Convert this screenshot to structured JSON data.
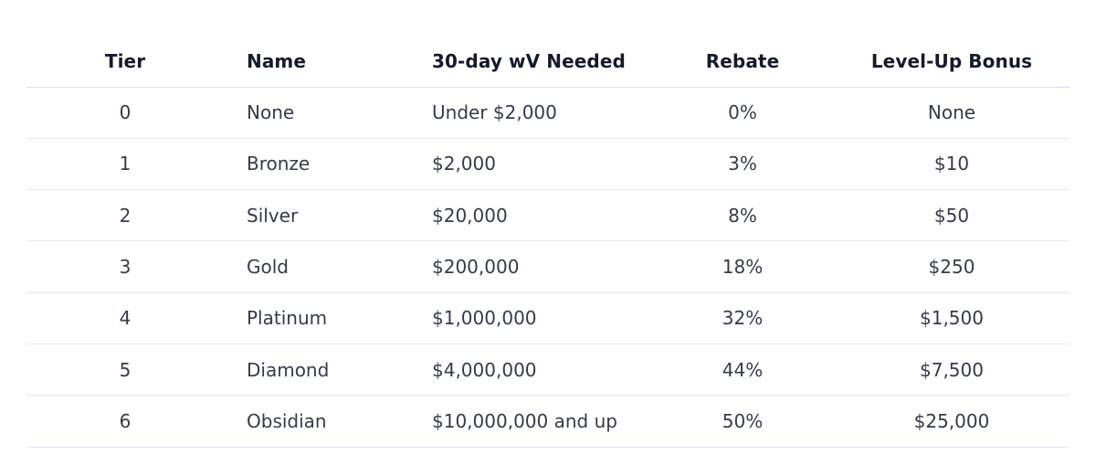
{
  "table": {
    "headers": {
      "tier": "Tier",
      "name": "Name",
      "volume": "30-day wV Needed",
      "rebate": "Rebate",
      "bonus": "Level-Up Bonus"
    },
    "rows": [
      {
        "tier": "0",
        "name": "None",
        "volume": "Under $2,000",
        "rebate": "0%",
        "bonus": "None"
      },
      {
        "tier": "1",
        "name": "Bronze",
        "volume": "$2,000",
        "rebate": "3%",
        "bonus": "$10"
      },
      {
        "tier": "2",
        "name": "Silver",
        "volume": "$20,000",
        "rebate": "8%",
        "bonus": "$50"
      },
      {
        "tier": "3",
        "name": "Gold",
        "volume": "$200,000",
        "rebate": "18%",
        "bonus": "$250"
      },
      {
        "tier": "4",
        "name": "Platinum",
        "volume": "$1,000,000",
        "rebate": "32%",
        "bonus": "$1,500"
      },
      {
        "tier": "5",
        "name": "Diamond",
        "volume": "$4,000,000",
        "rebate": "44%",
        "bonus": "$7,500"
      },
      {
        "tier": "6",
        "name": "Obsidian",
        "volume": "$10,000,000 and up",
        "rebate": "50%",
        "bonus": "$25,000"
      }
    ]
  }
}
